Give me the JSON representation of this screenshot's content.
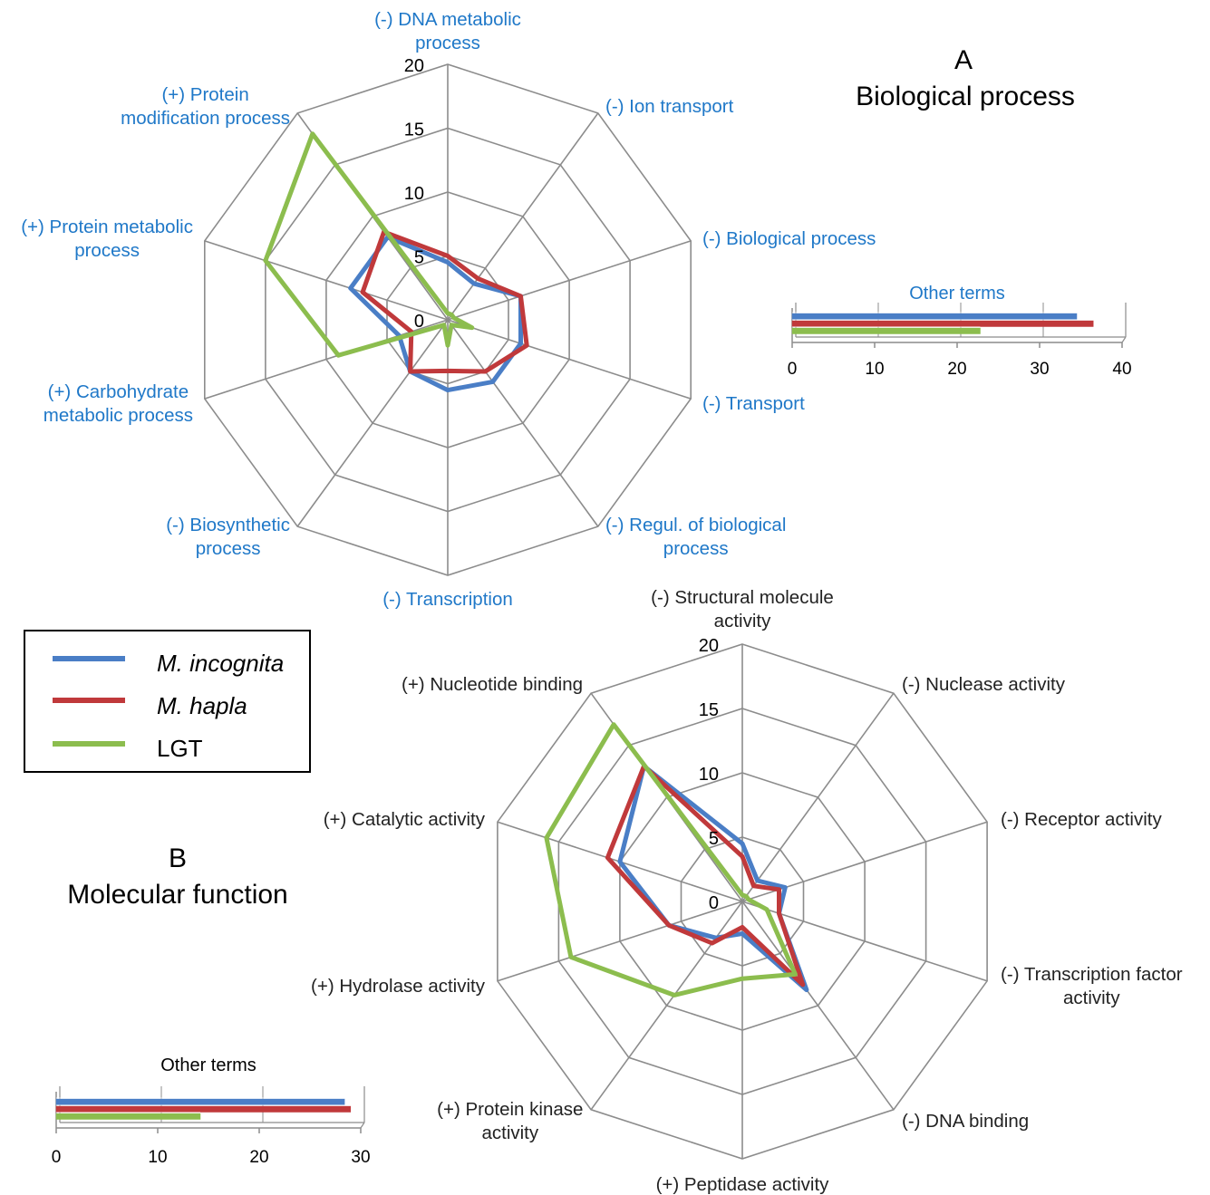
{
  "panels": [
    {
      "letter": "A",
      "title": "Biological process",
      "label_color": "#1f78c8"
    },
    {
      "letter": "B",
      "title": "Molecular function",
      "label_color": "#222222"
    }
  ],
  "series_colors": {
    "M. incognita": "#4a7ec6",
    "M. hapla": "#c0393b",
    "LGT": "#8cbd4e"
  },
  "legend": {
    "entries": [
      {
        "label": "M. incognita",
        "color": "#4a7ec6",
        "italic": true
      },
      {
        "label": "M. hapla",
        "color": "#c0393b",
        "italic": true
      },
      {
        "label": "LGT",
        "color": "#8cbd4e",
        "italic": false
      }
    ]
  },
  "chart_data": [
    {
      "type": "radar",
      "panel": "A",
      "title": "Biological process",
      "axes": [
        [
          "(-) DNA metabolic",
          "process"
        ],
        [
          "(-) Ion transport"
        ],
        [
          "(-) Biological process"
        ],
        [
          "(-) Transport"
        ],
        [
          "(-) Regul. of biological",
          "process"
        ],
        [
          "(-) Transcription"
        ],
        [
          "(-) Biosynthetic",
          "process"
        ],
        [
          "(+) Carbohydrate",
          "metabolic process"
        ],
        [
          "(+) Protein metabolic",
          "process"
        ],
        [
          "(+) Protein",
          "modification process"
        ]
      ],
      "rlim": [
        0,
        20
      ],
      "ticks": [
        "0",
        "5",
        "10",
        "15",
        "20"
      ],
      "series": [
        {
          "name": "M. incognita",
          "values": [
            4.5,
            3.5,
            6,
            6,
            6,
            5.5,
            5,
            4,
            8,
            8
          ]
        },
        {
          "name": "M. hapla",
          "values": [
            5,
            4,
            6,
            6.5,
            5,
            4,
            5,
            3,
            7,
            8.5
          ]
        },
        {
          "name": "LGT",
          "values": [
            0.5,
            0.5,
            0.5,
            2,
            0.5,
            2,
            0.5,
            9,
            15,
            18
          ]
        }
      ]
    },
    {
      "type": "bar",
      "panel": "A",
      "orientation": "horizontal",
      "title": "Other terms",
      "xlim": [
        0,
        40
      ],
      "ticks": [
        "0",
        "10",
        "20",
        "30",
        "40"
      ],
      "series": [
        {
          "name": "M. incognita",
          "value": 34.5
        },
        {
          "name": "M. hapla",
          "value": 36.5
        },
        {
          "name": "LGT",
          "value": 22.8
        }
      ]
    },
    {
      "type": "radar",
      "panel": "B",
      "title": "Molecular function",
      "axes": [
        [
          "(-) Structural molecule",
          "activity"
        ],
        [
          "(-) Nuclease activity"
        ],
        [
          "(-) Receptor activity"
        ],
        [
          "(-) Transcription factor",
          "activity"
        ],
        [
          "(-) DNA binding"
        ],
        [
          "(+) Peptidase activity"
        ],
        [
          "(+) Protein kinase",
          "activity"
        ],
        [
          "(+) Hydrolase activity"
        ],
        [
          "(+) Catalytic activity"
        ],
        [
          "(+) Nucleotide binding"
        ]
      ],
      "rlim": [
        0,
        20
      ],
      "ticks": [
        "0",
        "5",
        "10",
        "15",
        "20"
      ],
      "series": [
        {
          "name": "M. incognita",
          "values": [
            4.5,
            2,
            3.5,
            3,
            8.5,
            2.5,
            3.5,
            6,
            10,
            13
          ]
        },
        {
          "name": "M. hapla",
          "values": [
            3.5,
            1.5,
            3,
            3,
            8,
            2,
            4,
            6,
            11,
            13
          ]
        },
        {
          "name": "LGT",
          "values": [
            0.5,
            0.5,
            0.5,
            2,
            7,
            6,
            9,
            14,
            16,
            17
          ]
        }
      ]
    },
    {
      "type": "bar",
      "panel": "B",
      "orientation": "horizontal",
      "title": "Other terms",
      "xlim": [
        0,
        30
      ],
      "ticks": [
        "0",
        "10",
        "20",
        "30"
      ],
      "series": [
        {
          "name": "M. incognita",
          "value": 28.4
        },
        {
          "name": "M. hapla",
          "value": 29
        },
        {
          "name": "LGT",
          "value": 14.2
        }
      ]
    }
  ]
}
